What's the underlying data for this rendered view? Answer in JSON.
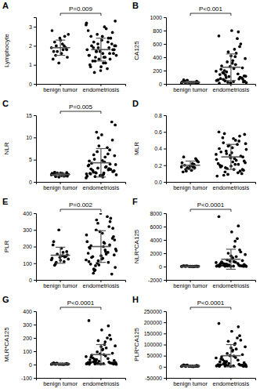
{
  "chart_data": [
    {
      "type": "scatter",
      "title": "A",
      "y_label": "Lymphocyte",
      "categories": [
        "benign tumor",
        "endometriosis"
      ],
      "color": "#000000",
      "marker": "circle",
      "ylim": [
        0,
        3.5
      ],
      "yticks": [
        0,
        1,
        2,
        3
      ],
      "annotation": "P=0.009",
      "values": [
        [
          1.9,
          2.1,
          1.5,
          1.8,
          2.4,
          1.3,
          2.0,
          1.7,
          2.6,
          1.6,
          2.2,
          1.9,
          1.1,
          2.8,
          1.8,
          2.0,
          1.4,
          2.3,
          1.7,
          2.5
        ],
        [
          1.2,
          1.8,
          2.5,
          0.9,
          1.6,
          2.1,
          3.1,
          1.4,
          1.9,
          2.7,
          0.7,
          1.5,
          2.2,
          1.7,
          3.3,
          1.1,
          2.0,
          2.4,
          1.3,
          1.8,
          2.9,
          0.6,
          1.6,
          2.3,
          1.0,
          1.9,
          2.6,
          1.5,
          3.0,
          1.2,
          2.1,
          1.7,
          2.8,
          0.8,
          1.4,
          2.0,
          1.6,
          2.5,
          1.3,
          1.9,
          3.2,
          1.1,
          2.2,
          1.8,
          0.9,
          1.5,
          2.4,
          1.7,
          2.0,
          1.4
        ]
      ],
      "mean": [
        1.9,
        1.8
      ],
      "sd": [
        0.4,
        0.6
      ]
    },
    {
      "type": "scatter",
      "title": "B",
      "y_label": "CA125",
      "categories": [
        "benign tumor",
        "endometriosis"
      ],
      "color": "#000000",
      "marker": "circle",
      "ylim": [
        0,
        1000
      ],
      "yticks": [
        0,
        200,
        400,
        600,
        800,
        1000
      ],
      "annotation": "P<0.001",
      "values": [
        [
          12,
          25,
          8,
          40,
          18,
          30,
          15,
          55,
          22,
          10,
          35,
          20,
          14,
          28,
          9,
          45,
          16,
          24,
          60,
          19
        ],
        [
          45,
          120,
          310,
          80,
          560,
          25,
          190,
          410,
          65,
          240,
          15,
          720,
          150,
          95,
          380,
          35,
          270,
          600,
          110,
          55,
          460,
          200,
          30,
          800,
          140,
          75,
          330,
          20,
          520,
          170,
          90,
          260,
          60,
          680,
          130,
          40,
          350,
          220,
          100,
          480,
          50,
          290,
          160,
          70,
          420,
          10,
          780,
          180,
          115,
          230
        ]
      ],
      "mean": [
        25,
        250
      ],
      "sd": [
        14,
        200
      ]
    },
    {
      "type": "scatter",
      "title": "C",
      "y_label": "NLR",
      "categories": [
        "benign tumor",
        "endometriosis"
      ],
      "color": "#000000",
      "marker": "circle",
      "ylim": [
        0,
        15
      ],
      "yticks": [
        0,
        5,
        10,
        15
      ],
      "annotation": "P=0.005",
      "values": [
        [
          1.6,
          1.9,
          1.2,
          2.1,
          1.5,
          1.8,
          1.3,
          2.0,
          1.7,
          1.4,
          2.2,
          1.6,
          1.1,
          1.9,
          1.5,
          1.8,
          1.3,
          2.0,
          1.7,
          1.4
        ],
        [
          1.2,
          2.5,
          4.8,
          1.8,
          7.2,
          3.1,
          0.9,
          5.6,
          2.2,
          9.4,
          1.5,
          3.8,
          6.3,
          2.0,
          12.8,
          1.7,
          4.2,
          2.8,
          8.1,
          1.3,
          3.4,
          5.1,
          2.4,
          10.6,
          1.9,
          3.0,
          6.8,
          1.6,
          4.5,
          2.6,
          13.5,
          1.4,
          3.6,
          7.7,
          2.1,
          5.9,
          1.1,
          2.9,
          4.0,
          9.9,
          1.8,
          3.3,
          6.1,
          2.3,
          1.5,
          4.7,
          2.7,
          11.2,
          3.9,
          2.0
        ]
      ],
      "mean": [
        1.65,
        4.3
      ],
      "sd": [
        0.3,
        3.2
      ]
    },
    {
      "type": "scatter",
      "title": "D",
      "y_label": "MLR",
      "categories": [
        "benign tumor",
        "endometriosis"
      ],
      "color": "#000000",
      "marker": "circle",
      "ylim": [
        0,
        0.8
      ],
      "yticks": [
        {
          "value": 0,
          "label": "0.0"
        },
        {
          "value": 0.2,
          "label": "0.2"
        },
        {
          "value": 0.4,
          "label": "0.4"
        },
        {
          "value": 0.6,
          "label": "0.6"
        },
        {
          "value": 0.8,
          "label": "0.8"
        }
      ],
      "values": [
        [
          0.18,
          0.22,
          0.15,
          0.26,
          0.19,
          0.12,
          0.21,
          0.17,
          0.24,
          0.14,
          0.2,
          0.28,
          0.16,
          0.23,
          0.18,
          0.13,
          0.25,
          0.19,
          0.3,
          0.17
        ],
        [
          0.12,
          0.25,
          0.41,
          0.18,
          0.55,
          0.09,
          0.33,
          0.21,
          0.47,
          0.15,
          0.29,
          0.6,
          0.11,
          0.37,
          0.23,
          0.52,
          0.19,
          0.31,
          0.44,
          0.07,
          0.26,
          0.58,
          0.14,
          0.35,
          0.2,
          0.49,
          0.16,
          0.39,
          0.28,
          0.53,
          0.1,
          0.32,
          0.22,
          0.45,
          0.17,
          0.57,
          0.24,
          0.36,
          0.13,
          0.43,
          0.27,
          0.5,
          0.08,
          0.3,
          0.19,
          0.4,
          0.21,
          0.34,
          0.46,
          0.15
        ]
      ],
      "mean": [
        0.2,
        0.3
      ],
      "sd": [
        0.05,
        0.15
      ]
    },
    {
      "type": "scatter",
      "title": "E",
      "y_label": "PLR",
      "categories": [
        "benign tumor",
        "endometriosis"
      ],
      "color": "#000000",
      "marker": "circle",
      "ylim": [
        0,
        400
      ],
      "yticks": [
        0,
        100,
        200,
        300,
        400
      ],
      "annotation": "P=0.002",
      "values": [
        [
          120,
          145,
          98,
          170,
          135,
          210,
          110,
          155,
          125,
          190,
          88,
          140,
          300,
          130,
          165,
          105,
          150,
          118,
          230,
          138
        ],
        [
          60,
          150,
          280,
          95,
          210,
          340,
          120,
          180,
          40,
          250,
          400,
          110,
          165,
          300,
          75,
          200,
          135,
          370,
          90,
          230,
          155,
          55,
          260,
          125,
          190,
          320,
          100,
          175,
          220,
          140,
          35,
          290,
          160,
          380,
          85,
          240,
          130,
          205,
          350,
          115,
          270,
          170,
          65,
          310,
          145,
          195,
          105,
          360,
          185,
          225
        ]
      ],
      "mean": [
        148,
        200
      ],
      "sd": [
        48,
        95
      ]
    },
    {
      "type": "scatter",
      "title": "F",
      "y_label": "NLR*CA125",
      "categories": [
        "benign tumor",
        "endometriosis"
      ],
      "color": "#000000",
      "marker": "circle",
      "ylim": [
        -2000,
        8000
      ],
      "yticks": [
        -2000,
        0,
        2000,
        4000,
        6000,
        8000
      ],
      "annotation": "P<0.0001",
      "values": [
        [
          20,
          45,
          15,
          80,
          30,
          60,
          25,
          100,
          40,
          18,
          70,
          35,
          22,
          55,
          12,
          90,
          28,
          42,
          110,
          33
        ],
        [
          50,
          300,
          1200,
          150,
          2500,
          80,
          600,
          3800,
          200,
          900,
          30,
          7500,
          450,
          120,
          1800,
          60,
          700,
          2200,
          250,
          90,
          1500,
          400,
          40,
          5200,
          350,
          180,
          1000,
          20,
          3000,
          500,
          100,
          800,
          160,
          4200,
          280,
          70,
          1300,
          550,
          130,
          2000,
          45,
          650,
          220,
          110,
          1600,
          25,
          6100,
          380,
          140,
          750
        ]
      ],
      "mean": [
        48,
        1100
      ],
      "sd": [
        28,
        1500
      ]
    },
    {
      "type": "scatter",
      "title": "G",
      "y_label": "MLR*CA125",
      "categories": [
        "benign tumor",
        "endometriosis"
      ],
      "color": "#000000",
      "marker": "circle",
      "ylim": [
        -100,
        400
      ],
      "yticks": [
        -100,
        0,
        100,
        200,
        300,
        400
      ],
      "annotation": "P<0.0001",
      "values": [
        [
          2,
          5,
          1.5,
          8,
          3,
          6,
          2.5,
          10,
          4,
          1.8,
          7,
          3.5,
          2.2,
          5.5,
          1.2,
          9,
          2.8,
          4.2,
          12,
          3.3
        ],
        [
          5,
          30,
          110,
          15,
          220,
          8,
          60,
          170,
          20,
          85,
          3,
          330,
          45,
          12,
          140,
          6,
          70,
          190,
          25,
          9,
          125,
          40,
          4,
          260,
          35,
          18,
          95,
          2,
          150,
          50,
          10,
          80,
          16,
          200,
          28,
          7,
          115,
          55,
          13,
          180,
          4.5,
          65,
          22,
          11,
          135,
          2.5,
          290,
          38,
          14,
          75
        ]
      ],
      "mean": [
        4.7,
        75
      ],
      "sd": [
        3,
        75
      ]
    },
    {
      "type": "scatter",
      "title": "H",
      "y_label": "PLR*CA125",
      "categories": [
        "benign tumor",
        "endometriosis"
      ],
      "color": "#000000",
      "marker": "circle",
      "ylim": [
        -50000,
        250000
      ],
      "yticks": [
        -50000,
        0,
        50000,
        100000,
        150000,
        200000,
        250000
      ],
      "annotation": "P<0.0001",
      "values": [
        [
          1800,
          3500,
          1200,
          6000,
          2500,
          4500,
          2000,
          8000,
          3000,
          1500,
          5500,
          2800,
          1700,
          4200,
          1000,
          7000,
          2300,
          3300,
          9000,
          2600
        ],
        [
          3000,
          18000,
          70000,
          9000,
          140000,
          5000,
          40000,
          105000,
          12000,
          55000,
          2000,
          195000,
          30000,
          7000,
          90000,
          4000,
          45000,
          120000,
          15000,
          6000,
          80000,
          25000,
          2500,
          160000,
          22000,
          11000,
          60000,
          1500,
          100000,
          32000,
          6500,
          50000,
          10000,
          130000,
          17000,
          4500,
          75000,
          35000,
          8000,
          115000,
          3500,
          42000,
          14000,
          7500,
          85000,
          2200,
          180000,
          24000,
          9500,
          48000
        ]
      ],
      "mean": [
        3600,
        50000
      ],
      "sd": [
        2200,
        50000
      ]
    }
  ]
}
